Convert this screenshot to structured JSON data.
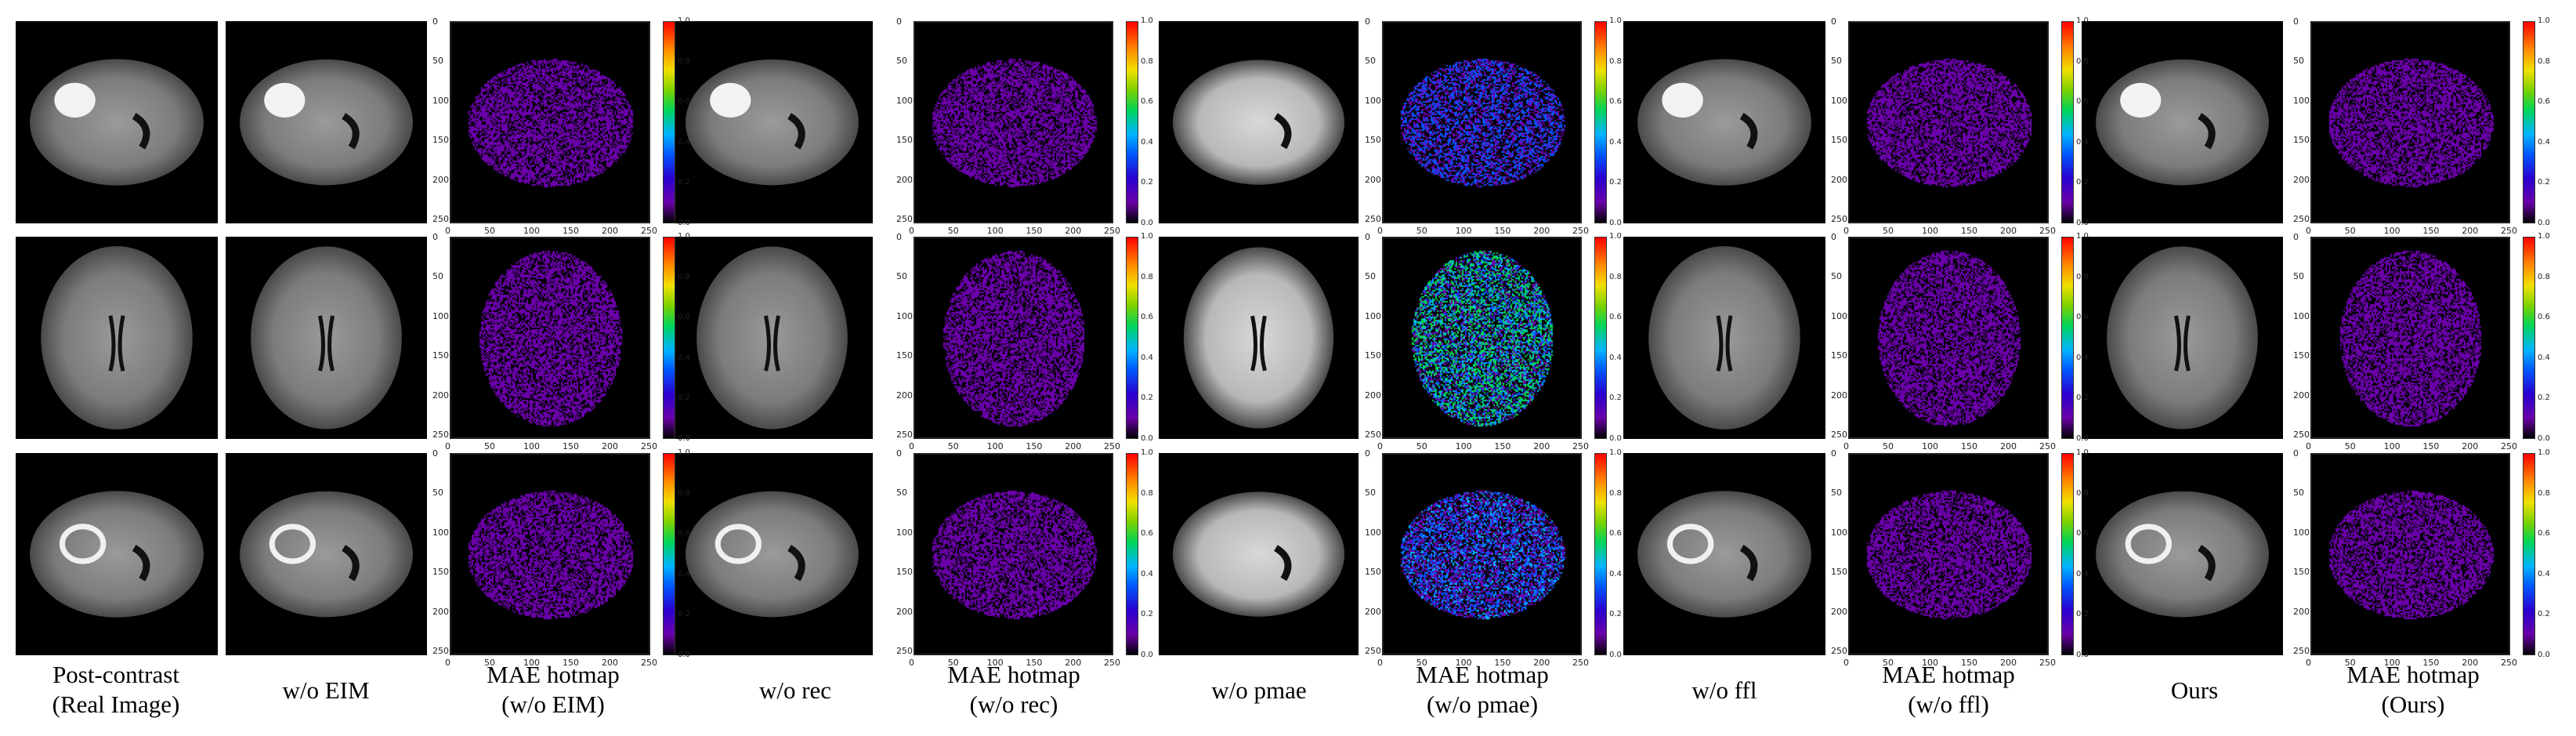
{
  "figure": {
    "columns": [
      {
        "kind": "image",
        "line1": "Post-contrast",
        "line2": "(Real Image)"
      },
      {
        "kind": "image",
        "line1": "w/o EIM",
        "line2": ""
      },
      {
        "kind": "hotmap",
        "line1": "MAE hotmap",
        "line2": "(w/o EIM)"
      },
      {
        "kind": "image",
        "line1": "w/o rec",
        "line2": ""
      },
      {
        "kind": "hotmap",
        "line1": "MAE hotmap",
        "line2": "(w/o rec)"
      },
      {
        "kind": "image",
        "line1": "w/o pmae",
        "line2": ""
      },
      {
        "kind": "hotmap",
        "line1": "MAE hotmap",
        "line2": "(w/o pmae)"
      },
      {
        "kind": "image",
        "line1": "w/o ffl",
        "line2": ""
      },
      {
        "kind": "hotmap",
        "line1": "MAE hotmap",
        "line2": "(w/o ffl)"
      },
      {
        "kind": "image",
        "line1": "Ours",
        "line2": ""
      },
      {
        "kind": "hotmap",
        "line1": "MAE hotmap",
        "line2": "(Ours)"
      }
    ],
    "axis_ticks": [
      "0",
      "50",
      "100",
      "150",
      "200",
      "250"
    ],
    "colorbar_ticks": [
      "0.0",
      "0.2",
      "0.4",
      "0.6",
      "0.8",
      "1.0"
    ],
    "colormap": [
      "#000000",
      "#6a00a8",
      "#0057ff",
      "#00b4ff",
      "#00d45a",
      "#f0e000",
      "#ff8c00",
      "#ff0000"
    ]
  }
}
